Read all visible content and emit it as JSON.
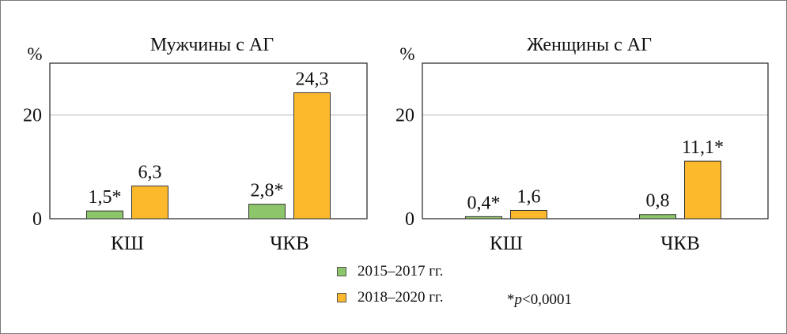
{
  "chart_data": [
    {
      "type": "bar",
      "title": "Мужчины с АГ",
      "ylabel": "%",
      "ylim": [
        0,
        30
      ],
      "yticks": [
        "0",
        "20"
      ],
      "categories": [
        "КШ",
        "ЧКВ"
      ],
      "series": [
        {
          "name": "2015–2017 гг.",
          "color": "#8cc56a",
          "values": [
            1.5,
            2.8
          ],
          "labels": [
            "1,5*",
            "2,8*"
          ]
        },
        {
          "name": "2018–2020 гг.",
          "color": "#fdb92c",
          "values": [
            6.3,
            24.3
          ],
          "labels": [
            "6,3",
            "24,3"
          ]
        }
      ],
      "grid": true
    },
    {
      "type": "bar",
      "title": "Женщины с АГ",
      "ylabel": "%",
      "ylim": [
        0,
        30
      ],
      "yticks": [
        "0",
        "20"
      ],
      "categories": [
        "КШ",
        "ЧКВ"
      ],
      "series": [
        {
          "name": "2015–2017 гг.",
          "color": "#8cc56a",
          "values": [
            0.4,
            0.8
          ],
          "labels": [
            "0,4*",
            "0,8"
          ]
        },
        {
          "name": "2018–2020 гг.",
          "color": "#fdb92c",
          "values": [
            1.6,
            11.1
          ],
          "labels": [
            "1,6",
            "11,1*"
          ]
        }
      ],
      "grid": true
    }
  ],
  "legend": {
    "items": [
      {
        "label": "2015–2017 гг.",
        "color": "#8cc56a"
      },
      {
        "label": "2018–2020 гг.",
        "color": "#fdb92c"
      }
    ]
  },
  "note": {
    "star": "*",
    "p": "p",
    "rest": "<0,0001"
  }
}
